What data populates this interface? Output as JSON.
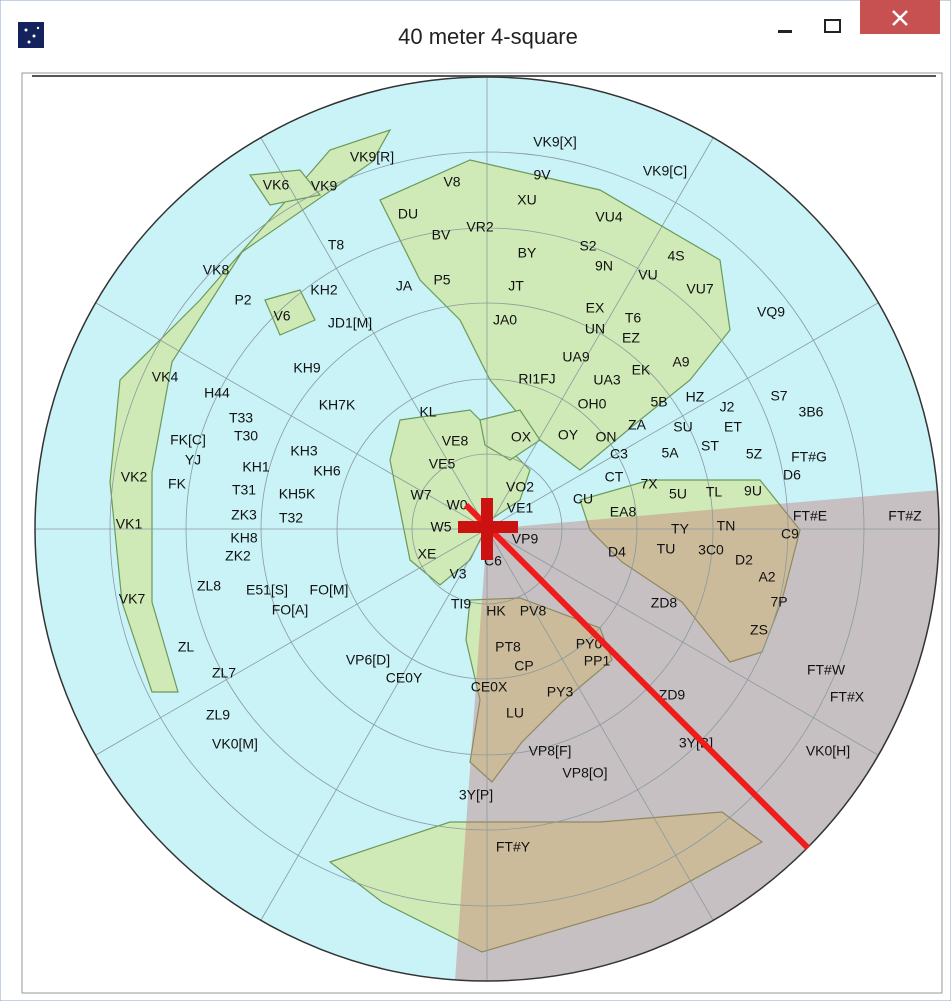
{
  "window": {
    "title": "40 meter 4-square"
  },
  "map": {
    "labels": [
      "VK9[X]",
      "VK9[R]",
      "VK9[C]",
      "9V",
      "VK6",
      "VK9",
      "V8",
      "XU",
      "DU",
      "VU4",
      "BV",
      "VR2",
      "BY",
      "S2",
      "4S",
      "T8",
      "9N",
      "VU",
      "VK8",
      "KH2",
      "JA",
      "P5",
      "JT",
      "VU7",
      "P2",
      "EX",
      "V6",
      "JD1[M]",
      "JA0",
      "T6",
      "VQ9",
      "UN",
      "EZ",
      "UA9",
      "KH9",
      "A9",
      "EK",
      "VK4",
      "RI1FJ",
      "UA3",
      "H44",
      "HZ",
      "S7",
      "5B",
      "OH0",
      "J2",
      "KH7K",
      "KL",
      "3B6",
      "T33",
      "ZA",
      "ET",
      "SU",
      "T30",
      "FK[C]",
      "OX",
      "OY",
      "ON",
      "VE8",
      "KH3",
      "ST",
      "5Z",
      "FT#G",
      "YJ",
      "C3",
      "VE5",
      "5A",
      "KH1",
      "KH6",
      "VK2",
      "D6",
      "FK",
      "CT",
      "7X",
      "VO2",
      "T31",
      "KH5K",
      "W7",
      "5U",
      "TL",
      "9U",
      "CU",
      "W0",
      "VE1",
      "EA8",
      "FT#E",
      "FT#Z",
      "VK1",
      "ZK3",
      "T32",
      "W5",
      "TY",
      "TN",
      "C9",
      "VP9",
      "D4",
      "TU",
      "3C0",
      "KH8",
      "ZK2",
      "XE",
      "C6",
      "D2",
      "V3",
      "A2",
      "ZL8",
      "E51[S]",
      "FO[M]",
      "FO[A]",
      "VK7",
      "TI9",
      "HK",
      "PV8",
      "ZD8",
      "7P",
      "ZS",
      "ZL",
      "PT8",
      "PY0",
      "PP1",
      "VP6[D]",
      "CP",
      "ZL7",
      "CE0Y",
      "FT#W",
      "CE0X",
      "PY3",
      "ZD9",
      "FT#X",
      "LU",
      "ZL9",
      "VK0[M]",
      "VP8[F]",
      "3Y[B]",
      "VK0[H]",
      "VP8[O]",
      "3Y[P]",
      "FT#Y"
    ]
  }
}
